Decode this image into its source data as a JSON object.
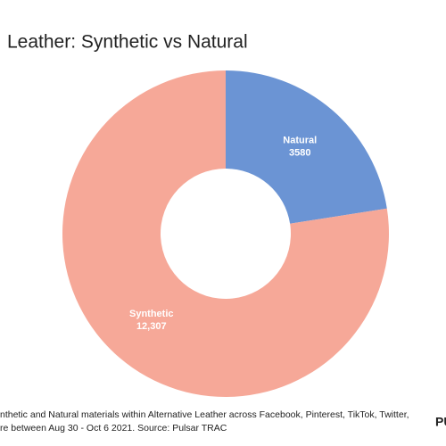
{
  "chart_data": {
    "type": "donut",
    "title": "Leather: Synthetic vs Natural",
    "categories": [
      "Natural",
      "Synthetic"
    ],
    "values": [
      3580,
      12307
    ],
    "value_labels": [
      "3580",
      "12,307"
    ],
    "colors": [
      "#6b94d4",
      "#f6a898"
    ],
    "footnote": [
      "nthetic and Natural materials within Alternative Leather across Facebook, Pinterest, TikTok, Twitter,",
      "re between Aug 30 - Oct 6 2021. Source: Pulsar TRAC"
    ],
    "logo": "PU"
  }
}
